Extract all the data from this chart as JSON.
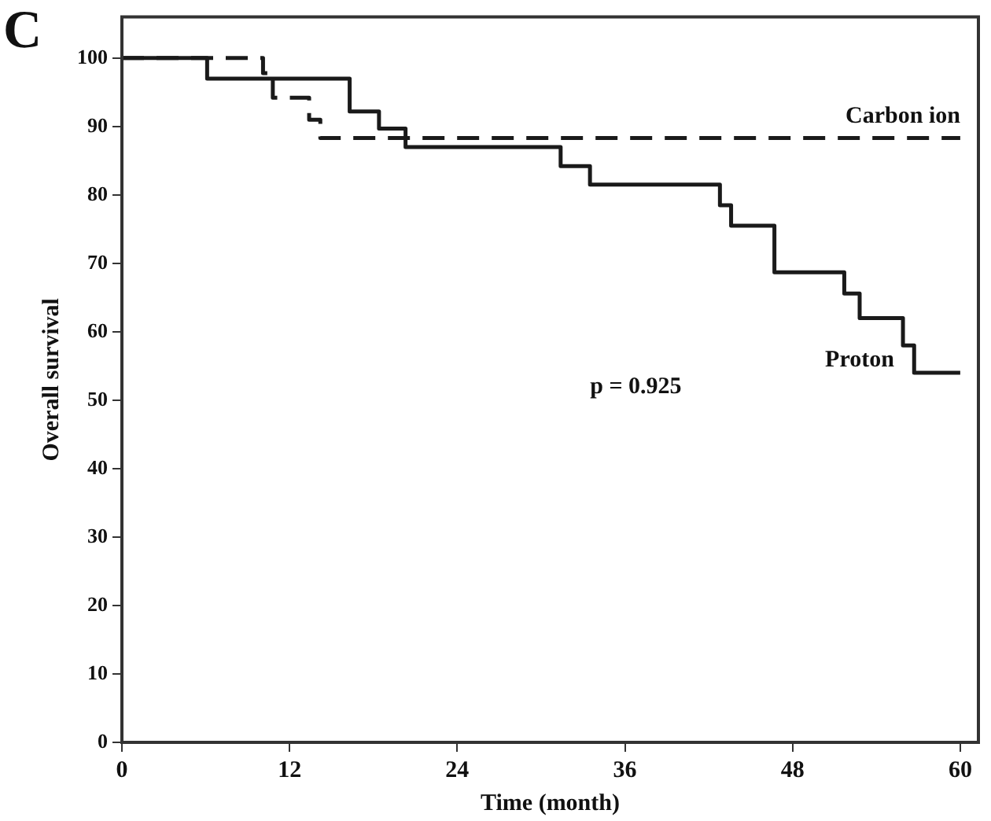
{
  "chart_data": {
    "type": "step",
    "xlabel": "Time (month)",
    "ylabel": "Overall survival",
    "xlim": [
      0,
      61.3
    ],
    "xticks": [
      0,
      12,
      24,
      36,
      48,
      60
    ],
    "ylim": [
      0,
      106
    ],
    "yticks": [
      0,
      10,
      20,
      30,
      40,
      50,
      60,
      70,
      80,
      90,
      100
    ],
    "grid": false,
    "legend": false,
    "marker": "none",
    "annotations": [
      "C",
      "p = 0.925"
    ],
    "series": [
      {
        "name": "Carbon ion",
        "color": "#1a1a1a",
        "line_style": "dashed",
        "x": [
          0,
          10.1,
          10.8,
          13.4,
          14.2,
          60
        ],
        "values": [
          100,
          97.8,
          94.2,
          91,
          88.3,
          88.3
        ]
      },
      {
        "name": "Proton",
        "color": "#1a1a1a",
        "line_style": "solid",
        "x": [
          0,
          6.1,
          16.3,
          18.4,
          20.3,
          31.4,
          33.5,
          42.8,
          43.6,
          46.7,
          51.7,
          52.8,
          55.9,
          56.7,
          60
        ],
        "values": [
          100,
          97,
          92.2,
          89.7,
          87,
          84.2,
          81.5,
          78.5,
          75.5,
          68.7,
          65.6,
          62,
          58,
          54,
          54
        ]
      }
    ]
  }
}
